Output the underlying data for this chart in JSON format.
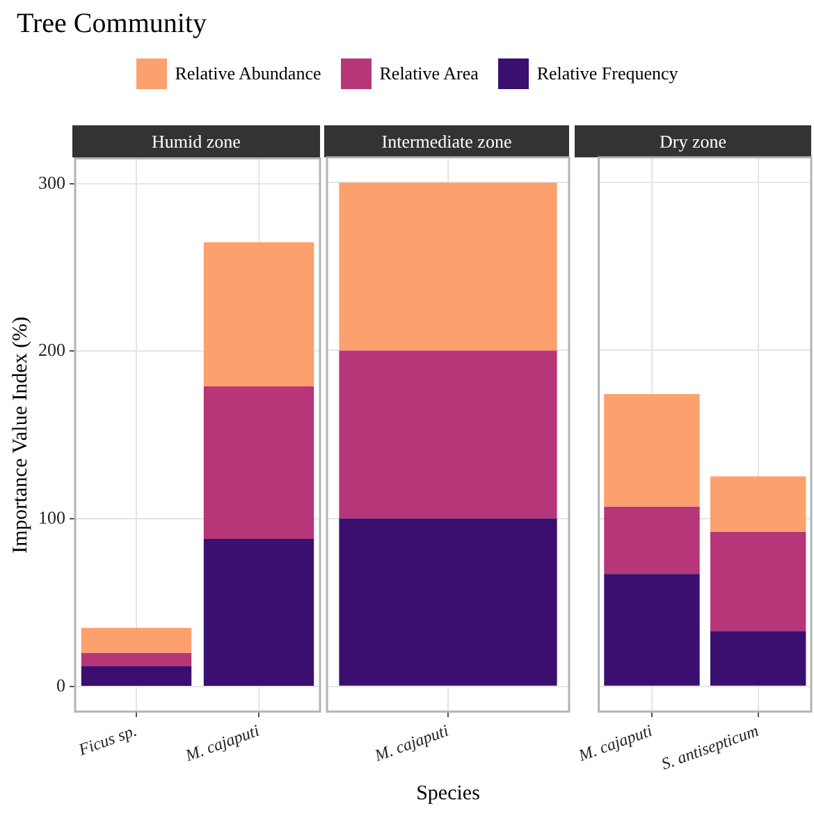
{
  "chart_data": [
    {
      "type": "bar",
      "title": "Tree Community",
      "subtitle": "Humid zone",
      "ylabel": "Importance Value Index (%)",
      "legend": "top",
      "stacked": true,
      "grid": true,
      "categories": [
        "Ficus sp.",
        "M. cajaputi"
      ],
      "ylim": [
        -15,
        315
      ],
      "yticks": [
        0,
        100,
        200,
        300
      ],
      "series": [
        {
          "name": "Relative Frequency",
          "color": "#3b0f70",
          "values": [
            12,
            88
          ]
        },
        {
          "name": "Relative Area",
          "color": "#b63679",
          "values": [
            8,
            91
          ]
        },
        {
          "name": "Relative Abundance",
          "color": "#fca06e",
          "values": [
            15,
            86
          ]
        }
      ]
    },
    {
      "type": "bar",
      "subtitle": "Intermediate zone",
      "xlabel": "Species",
      "stacked": true,
      "grid": true,
      "tick_labels": "x",
      "categories": [
        "M. cajaputi"
      ],
      "ylim": [
        -15,
        315
      ],
      "yticks": [
        0,
        100,
        200,
        300
      ],
      "series": [
        {
          "color": "#3b0f70",
          "values": [
            100
          ]
        },
        {
          "color": "#b63679",
          "values": [
            100
          ]
        },
        {
          "color": "#fca06e",
          "values": [
            100
          ]
        }
      ]
    },
    {
      "type": "bar",
      "subtitle": "Dry zone",
      "stacked": true,
      "grid": true,
      "tick_labels": "x",
      "categories": [
        "M. cajaputi",
        "S. antisepticum"
      ],
      "ylim": [
        -15,
        315
      ],
      "yticks": [
        0,
        100,
        200,
        300
      ],
      "series": [
        {
          "color": "#3b0f70",
          "values": [
            67,
            33
          ]
        },
        {
          "color": "#b63679",
          "values": [
            40,
            59
          ]
        },
        {
          "color": "#fca06e",
          "values": [
            67,
            33
          ]
        }
      ]
    }
  ]
}
